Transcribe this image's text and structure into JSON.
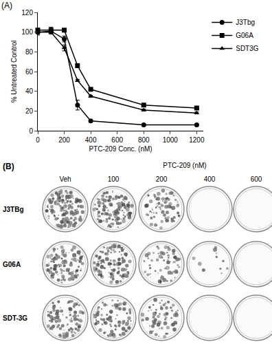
{
  "chart_data": {
    "type": "line",
    "title": "(A)",
    "x_label": "PTC-209 Conc. (nM)",
    "y_label": "% Untreated Control",
    "x": [
      0,
      100,
      200,
      300,
      400,
      800,
      1200
    ],
    "xlim": [
      0,
      1250
    ],
    "xticks": [
      0,
      200,
      400,
      600,
      800,
      1000,
      1200
    ],
    "ylim": [
      0,
      120
    ],
    "yticks": [
      0,
      20,
      40,
      60,
      80,
      100,
      120
    ],
    "grid": false,
    "legend": "right",
    "series": [
      {
        "name": "J3Tbg",
        "color": "#000000",
        "marker": "circle",
        "line_style": "solid",
        "values": [
          100,
          101,
          93,
          26,
          10,
          6,
          6
        ],
        "errors": [
          3,
          2,
          3,
          5,
          1,
          1,
          1
        ]
      },
      {
        "name": "G06A",
        "color": "#000000",
        "marker": "square",
        "line_style": "solid",
        "values": [
          102,
          102,
          102,
          66,
          42,
          26,
          23
        ],
        "errors": [
          2,
          3,
          1,
          2,
          1,
          1,
          1
        ]
      },
      {
        "name": "SDT3G",
        "color": "#000000",
        "marker": "triangle-up",
        "line_style": "solid",
        "values": [
          100,
          100,
          84,
          51,
          35,
          21,
          18
        ],
        "errors": [
          2,
          2,
          3,
          1,
          1,
          1,
          1
        ]
      }
    ]
  },
  "panel_b": {
    "label": "(B)",
    "treatment": "PTC-209 (nM)",
    "columns": [
      "Veh",
      "100",
      "200",
      "400",
      "600"
    ],
    "rows": [
      "J3TBg",
      "G06A",
      "SDT-3G"
    ]
  }
}
